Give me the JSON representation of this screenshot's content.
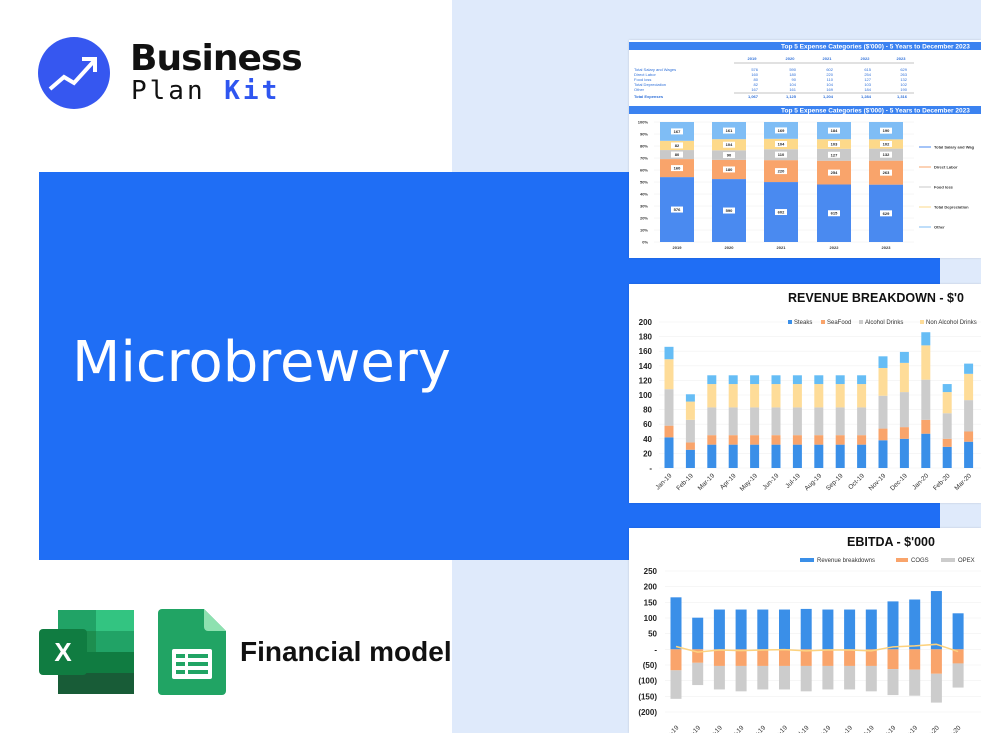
{
  "brand": {
    "line1": "Business",
    "line2a": "Plan",
    "line2b": "Kit",
    "accent": "#2f56f0"
  },
  "hero": {
    "title": "Microbrewery",
    "color": "#1f6ef5"
  },
  "footer": {
    "label": "Financial model",
    "icons": [
      "excel-icon",
      "google-sheets-icon"
    ]
  },
  "chart_data": [
    {
      "type": "table",
      "title": "Top 5 Expense Categories ($'000) - 5 Years to December 2023",
      "columns": [
        "2019",
        "2020",
        "2021",
        "2022",
        "2023"
      ],
      "rows": [
        {
          "label": "Total Salary and Wages",
          "values": [
            "576",
            "590",
            "602",
            "615",
            "629"
          ]
        },
        {
          "label": "Direct Labor",
          "values": [
            "160",
            "180",
            "220",
            "254",
            "263"
          ]
        },
        {
          "label": "Food loss",
          "values": [
            "80",
            "90",
            "110",
            "127",
            "132"
          ]
        },
        {
          "label": "Total Depreciation",
          "values": [
            "82",
            "104",
            "104",
            "103",
            "102"
          ]
        },
        {
          "label": "Other",
          "values": [
            "167",
            "161",
            "169",
            "184",
            "190"
          ]
        }
      ],
      "total": {
        "label": "Total Expenses",
        "values": [
          "1,067",
          "1,125",
          "1,204",
          "1,284",
          "1,316"
        ]
      }
    },
    {
      "type": "bar",
      "stacked": "percent",
      "title": "Top 5 Expense Categories ($'000) - 5 Years to December 2023",
      "categories": [
        "2019",
        "2020",
        "2021",
        "2022",
        "2023"
      ],
      "yticks": [
        "0%",
        "10%",
        "20%",
        "30%",
        "40%",
        "50%",
        "60%",
        "70%",
        "80%",
        "90%",
        "100%"
      ],
      "legend": "right",
      "series": [
        {
          "name": "Total Salary and Wag",
          "color": "#4a8af0",
          "values": [
            576,
            590,
            602,
            615,
            629
          ]
        },
        {
          "name": "Direct Labor",
          "color": "#f9a46b",
          "values": [
            160,
            180,
            220,
            254,
            263
          ]
        },
        {
          "name": "Food loss",
          "color": "#c9c9c9",
          "values": [
            80,
            90,
            110,
            127,
            132
          ]
        },
        {
          "name": "Total Depreciation",
          "color": "#fdd98a",
          "values": [
            82,
            104,
            104,
            103,
            102
          ]
        },
        {
          "name": "Other",
          "color": "#7fbdf5",
          "values": [
            167,
            161,
            169,
            184,
            190
          ]
        }
      ]
    },
    {
      "type": "bar",
      "stacked": true,
      "title": "REVENUE BREAKDOWN - $'0",
      "ylim": [
        0,
        200
      ],
      "yticks": [
        "-",
        "20",
        "40",
        "60",
        "80",
        "100",
        "120",
        "140",
        "160",
        "180",
        "200"
      ],
      "legend": "top",
      "categories": [
        "Jan-19",
        "Feb-19",
        "Mar-19",
        "Apr-19",
        "May-19",
        "Jun-19",
        "Jul-19",
        "Aug-19",
        "Sep-19",
        "Oct-19",
        "Nov-19",
        "Dec-19",
        "Jan-20",
        "Feb-20",
        "Mar-20"
      ],
      "series": [
        {
          "name": "Steaks",
          "color": "#3a8fe8",
          "values": [
            42,
            25,
            32,
            32,
            32,
            32,
            32,
            32,
            32,
            32,
            38,
            40,
            47,
            29,
            36
          ]
        },
        {
          "name": "SeaFood",
          "color": "#f9a46b",
          "values": [
            16,
            10,
            13,
            13,
            13,
            13,
            13,
            13,
            13,
            13,
            16,
            16,
            19,
            11,
            14
          ]
        },
        {
          "name": "Alcohol Drinks",
          "color": "#cccccc",
          "values": [
            50,
            31,
            38,
            38,
            38,
            38,
            38,
            38,
            38,
            38,
            45,
            48,
            55,
            35,
            43
          ]
        },
        {
          "name": "Non Alcohol Drinks",
          "color": "#fedc98",
          "values": [
            41,
            25,
            32,
            32,
            32,
            32,
            32,
            32,
            32,
            32,
            38,
            40,
            47,
            29,
            36
          ]
        },
        {
          "color": "#66bdf5",
          "values": [
            17,
            10,
            12,
            12,
            12,
            12,
            12,
            12,
            12,
            12,
            16,
            15,
            18,
            11,
            14
          ]
        }
      ]
    },
    {
      "type": "bar",
      "stacked": true,
      "title": "EBITDA - $'000",
      "ylim": [
        -200,
        250
      ],
      "yticks": [
        "(200)",
        "(150)",
        "(100)",
        "(50)",
        "-",
        "50",
        "100",
        "150",
        "200",
        "250"
      ],
      "legend": "top",
      "series": [
        {
          "name": "Revenue breakdowns",
          "color": "#3a8fe8",
          "values": [
            166,
            101,
            127,
            127,
            127,
            127,
            129,
            127,
            127,
            127,
            153,
            159,
            186,
            115
          ]
        },
        {
          "name": "COGS",
          "color": "#f9a46b",
          "values": [
            -67,
            -43,
            -53,
            -53,
            -53,
            -53,
            -53,
            -53,
            -53,
            -53,
            -63,
            -65,
            -78,
            -45
          ]
        },
        {
          "name": "OPEX",
          "color": "#cccccc",
          "values": [
            -91,
            -71,
            -75,
            -81,
            -75,
            -75,
            -81,
            -75,
            -75,
            -81,
            -83,
            -83,
            -92,
            -77
          ]
        },
        {
          "type": "line",
          "color": "#fdd27e",
          "values": [
            9,
            -9,
            -2,
            -4,
            -2,
            -1,
            -5,
            -2,
            -2,
            -5,
            8,
            11,
            16,
            -7
          ]
        }
      ]
    }
  ]
}
